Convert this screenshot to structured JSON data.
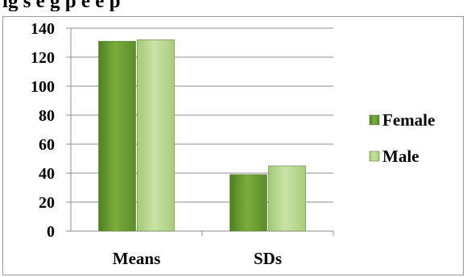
{
  "header": {
    "cut_title": "ig     s     e  g  p          e                        e          p"
  },
  "chart_data": {
    "type": "bar",
    "title": "",
    "xlabel": "",
    "ylabel": "",
    "categories": [
      "Means",
      "SDs"
    ],
    "series": [
      {
        "name": "Female",
        "values": [
          131,
          39
        ],
        "color": "#73a53a"
      },
      {
        "name": "Male",
        "values": [
          132,
          45
        ],
        "color": "#b9d890"
      }
    ],
    "ylim": [
      0,
      140
    ],
    "yticks": [
      0,
      20,
      40,
      60,
      80,
      100,
      120,
      140
    ],
    "grid": true,
    "legend": "right"
  }
}
